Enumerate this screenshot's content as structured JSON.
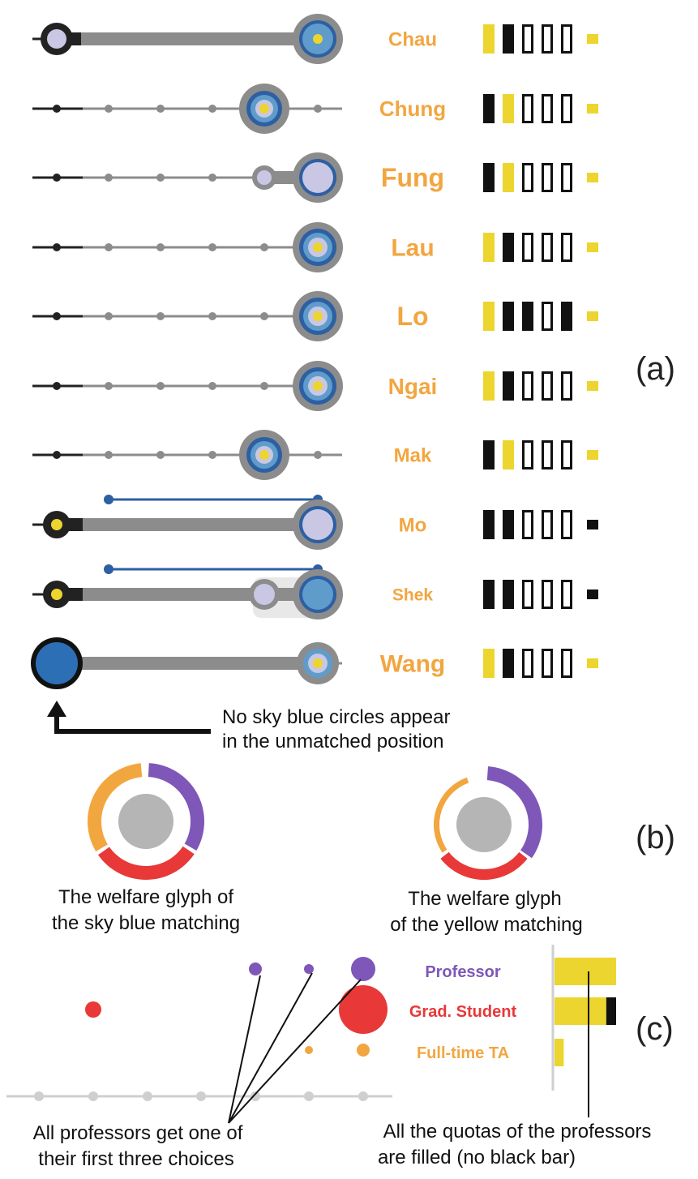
{
  "panel_a": {
    "label": "(a)",
    "rows": [
      {
        "name": "Chau",
        "name_size": 24,
        "bars": [
          "yellow",
          "black",
          "empty",
          "empty",
          "empty"
        ],
        "end": "yellow"
      },
      {
        "name": "Chung",
        "name_size": 26,
        "bars": [
          "black",
          "yellow",
          "empty",
          "empty",
          "empty"
        ],
        "end": "yellow"
      },
      {
        "name": "Fung",
        "name_size": 32,
        "bars": [
          "black",
          "yellow",
          "empty",
          "empty",
          "empty"
        ],
        "end": "yellow"
      },
      {
        "name": "Lau",
        "name_size": 30,
        "bars": [
          "yellow",
          "black",
          "empty",
          "empty",
          "empty"
        ],
        "end": "yellow"
      },
      {
        "name": "Lo",
        "name_size": 32,
        "bars": [
          "yellow",
          "black",
          "black",
          "empty",
          "black"
        ],
        "end": "yellow"
      },
      {
        "name": "Ngai",
        "name_size": 28,
        "bars": [
          "yellow",
          "black",
          "empty",
          "empty",
          "empty"
        ],
        "end": "yellow"
      },
      {
        "name": "Mak",
        "name_size": 24,
        "bars": [
          "black",
          "yellow",
          "empty",
          "empty",
          "empty"
        ],
        "end": "yellow"
      },
      {
        "name": "Mo",
        "name_size": 24,
        "bars": [
          "black",
          "black",
          "empty",
          "empty",
          "empty"
        ],
        "end": "black"
      },
      {
        "name": "Shek",
        "name_size": 21,
        "bars": [
          "black",
          "black",
          "empty",
          "empty",
          "empty"
        ],
        "end": "black"
      },
      {
        "name": "Wang",
        "name_size": 30,
        "bars": [
          "yellow",
          "black",
          "empty",
          "empty",
          "empty"
        ],
        "end": "yellow"
      }
    ],
    "annotation": [
      "No sky blue circles appear",
      "in the unmatched position"
    ]
  },
  "panel_b": {
    "label": "(b)",
    "glyphs": [
      {
        "caption": [
          "The welfare glyph of",
          "the sky blue matching"
        ]
      },
      {
        "caption": [
          "The welfare glyph",
          "of the yellow matching"
        ]
      }
    ]
  },
  "panel_c": {
    "label": "(c)",
    "categories": [
      {
        "name": "Professor",
        "color": "#7e57b8",
        "quota_filled": 1.0
      },
      {
        "name": "Grad. Student",
        "color": "#e83838",
        "quota_filled": 0.84
      },
      {
        "name": "Full-time TA",
        "color": "#f2a640",
        "quota_filled": 0.15
      }
    ],
    "annotation_left": [
      "All professors get one of",
      "their first three choices"
    ],
    "annotation_right": [
      "All the quotas of the professors",
      "are filled (no black bar)"
    ]
  },
  "colors": {
    "orange": "#f2a640",
    "yellow": "#ecd52e",
    "sky_blue": "#5f9ccb",
    "dark_blue": "#2d5fa3",
    "lavender": "#c9c7e3",
    "gray": "#8c8c8c",
    "purple": "#7e57b8",
    "red": "#e83838"
  }
}
